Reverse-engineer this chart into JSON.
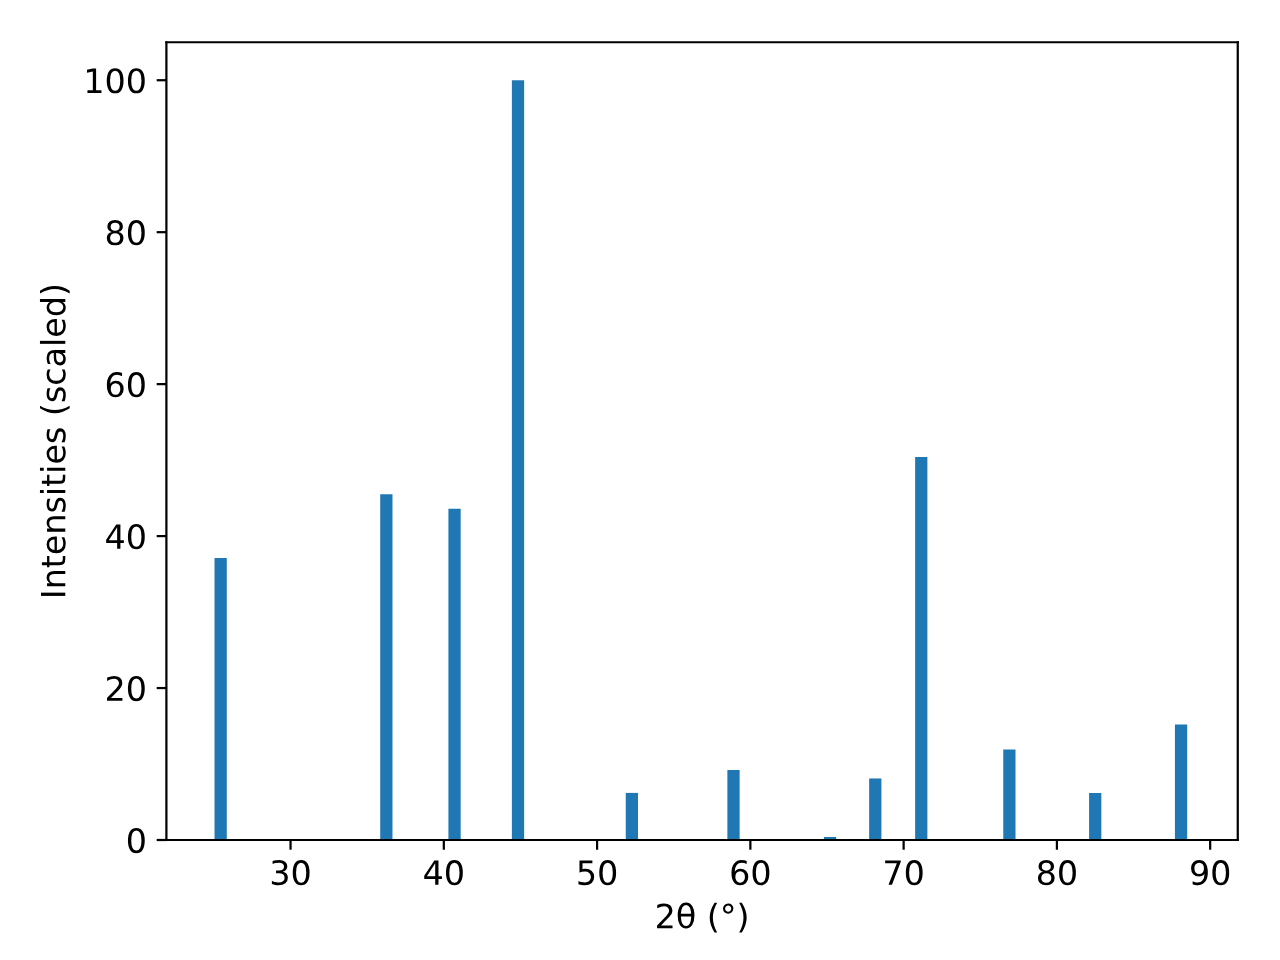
{
  "chart_data": {
    "type": "bar",
    "xlabel": "2θ (°)",
    "ylabel": "Intensities (scaled)",
    "x": [
      25.44,
      36.25,
      40.7,
      44.84,
      52.27,
      58.9,
      65.2,
      68.15,
      71.15,
      76.9,
      82.5,
      88.1
    ],
    "values": [
      37.1,
      45.5,
      43.6,
      100,
      6.2,
      9.2,
      0.4,
      8.1,
      50.4,
      11.9,
      6.2,
      15.2
    ],
    "color": "#1f77b4",
    "xlim": [
      21.9,
      91.8
    ],
    "xticks": [
      30,
      40,
      50,
      60,
      70,
      80,
      90
    ],
    "ylim": [
      0,
      105
    ],
    "yticks": [
      0,
      20,
      40,
      60,
      80,
      100
    ],
    "grid": false,
    "legend": false
  }
}
